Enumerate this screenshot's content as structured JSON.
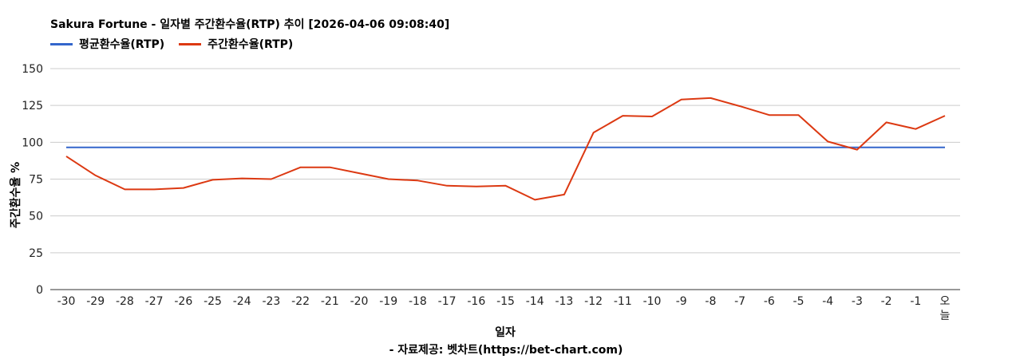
{
  "chart_data": {
    "type": "line",
    "title": "Sakura Fortune - 일자별 주간환수율(RTP) 추이 [2026-04-06 09:08:40]",
    "xlabel": "일자",
    "ylabel": "주간환수율 %",
    "footer": "- 자료제공: 벳차트(https://bet-chart.com)",
    "ylim": [
      0,
      150
    ],
    "yticks": [
      "0",
      "25",
      "50",
      "75",
      "100",
      "125",
      "150"
    ],
    "grid": true,
    "legend_position": "top-left",
    "categories": [
      "-30",
      "-29",
      "-28",
      "-27",
      "-26",
      "-25",
      "-24",
      "-23",
      "-22",
      "-21",
      "-20",
      "-19",
      "-18",
      "-17",
      "-16",
      "-15",
      "-14",
      "-13",
      "-12",
      "-11",
      "-10",
      "-9",
      "-8",
      "-7",
      "-6",
      "-5",
      "-4",
      "-3",
      "-2",
      "-1",
      "오늘"
    ],
    "series": [
      {
        "name": "평균환수율(RTP)",
        "color": "#3366cc",
        "values": [
          96.5,
          96.5,
          96.5,
          96.5,
          96.5,
          96.5,
          96.5,
          96.5,
          96.5,
          96.5,
          96.5,
          96.5,
          96.5,
          96.5,
          96.5,
          96.5,
          96.5,
          96.5,
          96.5,
          96.5,
          96.5,
          96.5,
          96.5,
          96.5,
          96.5,
          96.5,
          96.5,
          96.5,
          96.5,
          96.5,
          96.5
        ]
      },
      {
        "name": "주간환수율(RTP)",
        "color": "#dc3912",
        "values": [
          90.5,
          77.5,
          68,
          68,
          69,
          74.5,
          75.5,
          75,
          83,
          83,
          79,
          75,
          74,
          70.5,
          70,
          70.5,
          61,
          64.5,
          106.5,
          118,
          117.5,
          129,
          130,
          124.5,
          118.5,
          118.5,
          100.5,
          95,
          113.5,
          109,
          118
        ]
      }
    ]
  }
}
